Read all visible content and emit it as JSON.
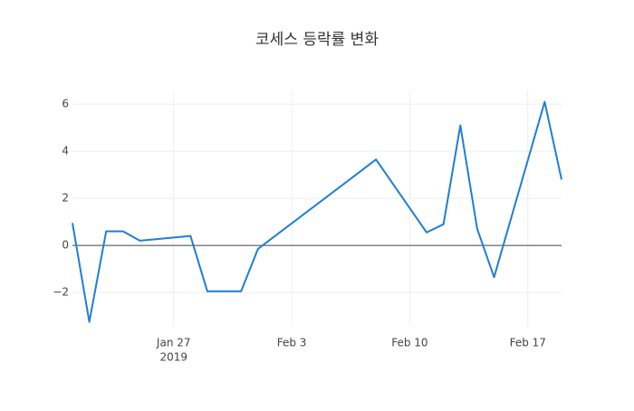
{
  "chart_data": {
    "type": "line",
    "title": "코세스 등락률 변화",
    "x": [
      "2019-01-21",
      "2019-01-22",
      "2019-01-23",
      "2019-01-24",
      "2019-01-25",
      "2019-01-28",
      "2019-01-29",
      "2019-01-31",
      "2019-02-01",
      "2019-02-08",
      "2019-02-11",
      "2019-02-12",
      "2019-02-13",
      "2019-02-14",
      "2019-02-15",
      "2019-02-18",
      "2019-02-19"
    ],
    "series": [
      {
        "color": "#1f7ed6",
        "values": [
          0.95,
          -3.25,
          0.6,
          0.6,
          0.2,
          0.4,
          -1.95,
          -1.95,
          -0.15,
          3.65,
          0.55,
          0.9,
          5.1,
          0.7,
          -1.35,
          6.1,
          2.8
        ]
      }
    ],
    "xlim": [
      "2019-01-21",
      "2019-02-19"
    ],
    "xticks": [
      {
        "value": "2019-01-27",
        "label": "Jan 27",
        "year": "2019"
      },
      {
        "value": "2019-02-03",
        "label": "Feb 3"
      },
      {
        "value": "2019-02-10",
        "label": "Feb 10"
      },
      {
        "value": "2019-02-17",
        "label": "Feb 17"
      }
    ],
    "ylim": [
      -3.42,
      6.58
    ],
    "yticks": [
      {
        "value": -2,
        "label": "−2"
      },
      0,
      2,
      4,
      6
    ],
    "grid": true,
    "zeroline": true
  }
}
